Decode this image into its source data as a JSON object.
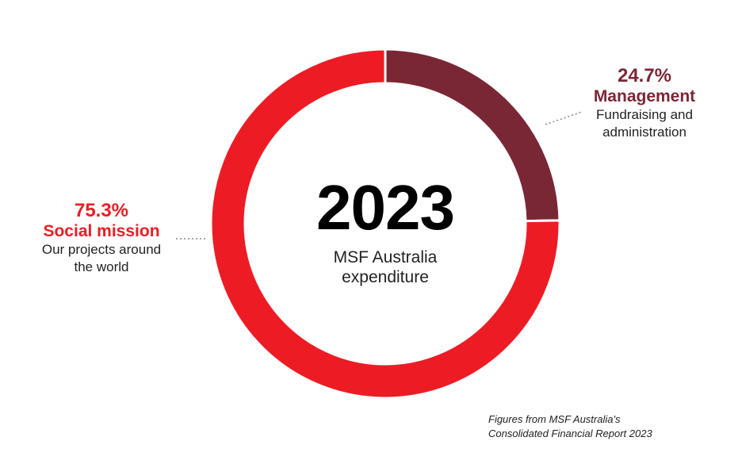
{
  "colors": {
    "social": "#ed1c24",
    "management": "#7a2735",
    "leader": "#888888"
  },
  "center": {
    "year": "2023",
    "caption_line1": "MSF Australia",
    "caption_line2": "expenditure"
  },
  "chart_data": {
    "type": "pie",
    "style": "donut",
    "title": "2023",
    "subtitle": "MSF Australia expenditure",
    "unit": "%",
    "legend": "none",
    "slices": [
      {
        "label": "Management",
        "value": 24.7,
        "color": "#7a2735"
      },
      {
        "label": "Social mission",
        "value": 75.3,
        "color": "#ed1c24"
      }
    ]
  },
  "labels": {
    "social": {
      "pct": "75.3%",
      "name": "Social mission",
      "desc_line1": "Our projects around",
      "desc_line2": "the world"
    },
    "management": {
      "pct": "24.7%",
      "name": "Management",
      "desc_line1": "Fundraising and",
      "desc_line2": "administration"
    }
  },
  "source": {
    "line1": "Figures from MSF Australia's",
    "line2": "Consolidated Financial Report 2023"
  }
}
